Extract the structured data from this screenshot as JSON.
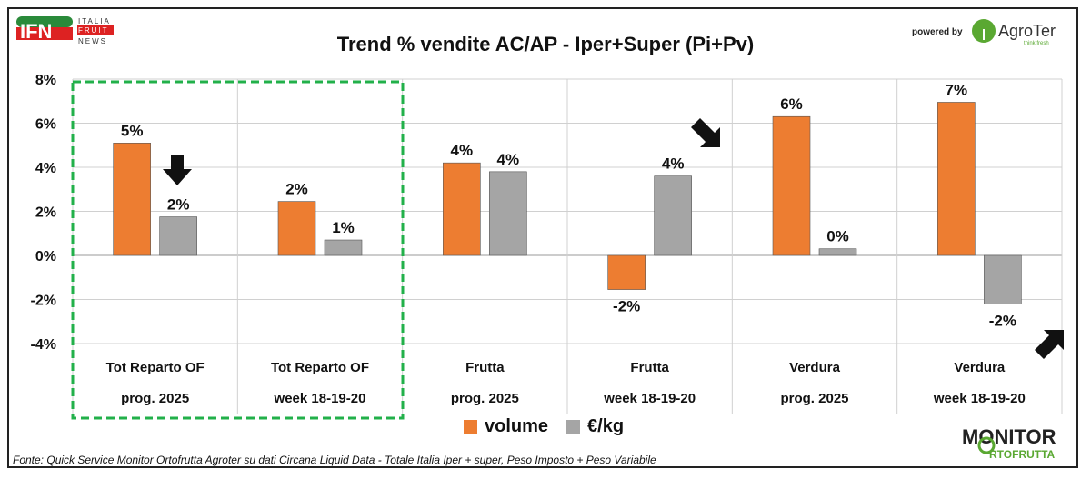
{
  "header": {
    "title": "Trend % vendite AC/AP -  Iper+Super (Pi+Pv)",
    "powered_by": "powered by",
    "logo_left": "IFN ITALIA FRUIT NEWS",
    "logo_right": "AgroTer think fresh",
    "logo_bottom": "MONITOR ORTOFRUTTA powered by AgroTer"
  },
  "footer": "Fonte: Quick Service Monitor Ortofrutta Agroter su dati Circana Liquid Data - Totale Italia Iper + super, Peso Imposto + Peso Variabile",
  "chart_data": {
    "type": "bar",
    "title": "Trend % vendite AC/AP -  Iper+Super (Pi+Pv)",
    "categories": [
      [
        "Tot Reparto OF",
        "prog. 2025"
      ],
      [
        "Tot Reparto OF",
        "week 18-19-20"
      ],
      [
        "Frutta",
        "prog. 2025"
      ],
      [
        "Frutta",
        "week 18-19-20"
      ],
      [
        "Verdura",
        "prog. 2025"
      ],
      [
        "Verdura",
        "week 18-19-20"
      ]
    ],
    "series": [
      {
        "name": "volume",
        "color": "#ED7D31",
        "values": [
          5.1,
          2.45,
          4.2,
          -1.55,
          6.3,
          6.95
        ],
        "labels": [
          "5%",
          "2%",
          "4%",
          "-2%",
          "6%",
          "7%"
        ]
      },
      {
        "name": "€/kg",
        "color": "#A5A5A5",
        "values": [
          1.75,
          0.7,
          3.8,
          3.6,
          0.3,
          -2.2
        ],
        "labels": [
          "2%",
          "1%",
          "4%",
          "4%",
          "0%",
          "-2%"
        ]
      }
    ],
    "ylim": [
      -4,
      8
    ],
    "yticks": [
      8,
      6,
      4,
      2,
      0,
      -2,
      -4
    ],
    "ytick_labels": [
      "8%",
      "6%",
      "4%",
      "2%",
      "0%",
      "-2%",
      "-4%"
    ],
    "grid": true,
    "legend": "bottom",
    "highlight_groups": [
      0,
      1
    ]
  }
}
